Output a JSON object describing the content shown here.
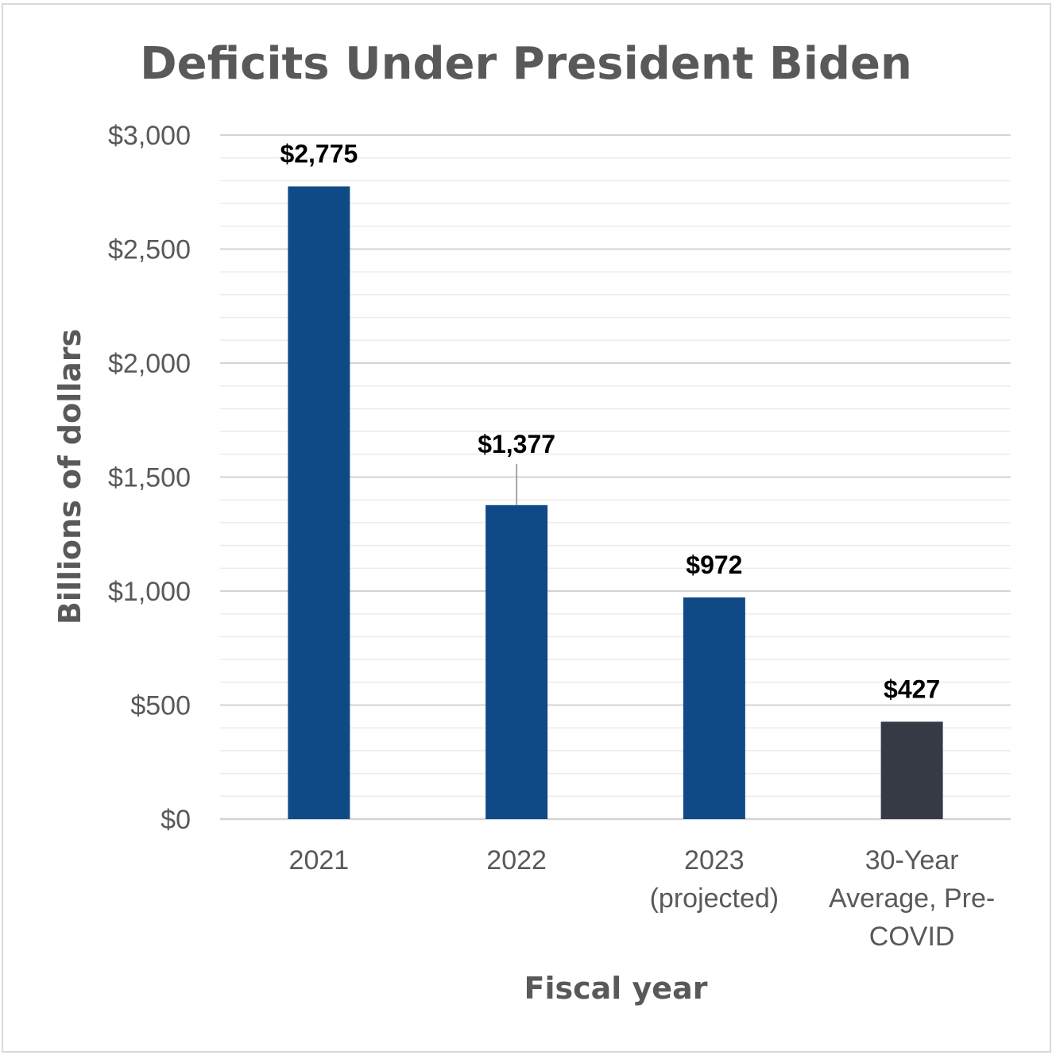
{
  "chart_data": {
    "type": "bar",
    "title": "Deficits Under President Biden",
    "xlabel": "Fiscal year",
    "ylabel": "Billions of dollars",
    "ylim": [
      0,
      3000
    ],
    "ytick_step": 500,
    "minor_step": 100,
    "yticks": [
      "$0",
      "$500",
      "$1,000",
      "$1,500",
      "$2,000",
      "$2,500",
      "$3,000"
    ],
    "grid": true,
    "categories": [
      [
        "2021"
      ],
      [
        "2022"
      ],
      [
        "2023",
        "(projected)"
      ],
      [
        "30-Year",
        "Average, Pre-",
        "COVID"
      ]
    ],
    "values": [
      2775,
      1377,
      972,
      427
    ],
    "data_labels": [
      "$2,775",
      "$1,377",
      "$972",
      "$427"
    ],
    "colors": [
      "#104a86",
      "#104a86",
      "#104a86",
      "#363a45"
    ],
    "leader_line_on": [
      1
    ]
  }
}
